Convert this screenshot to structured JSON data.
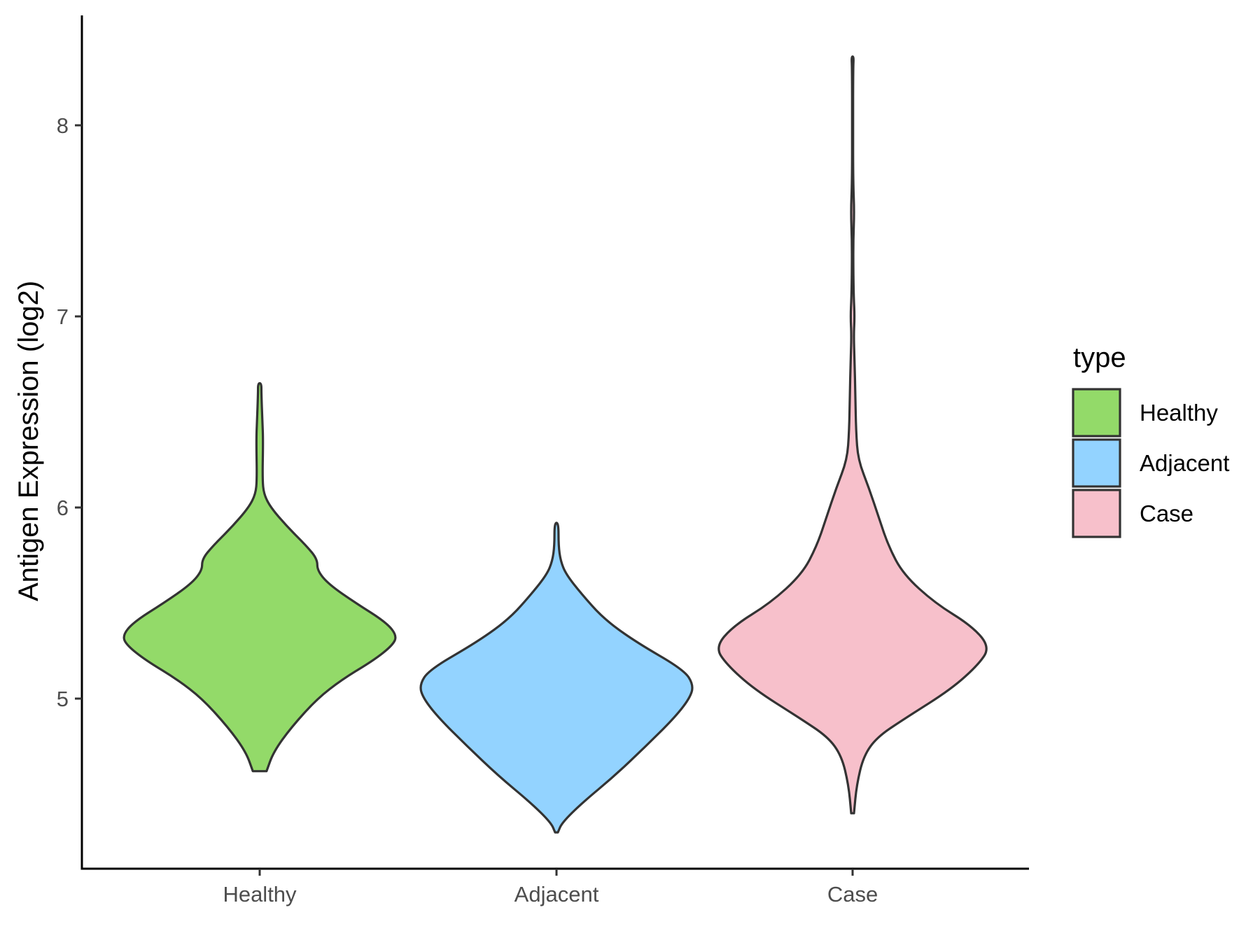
{
  "chart_data": {
    "type": "violin",
    "title": "",
    "xlabel": "",
    "ylabel": "Antigen Expression (log2)",
    "ylim": [
      4.2,
      8.6
    ],
    "yticks": [
      5,
      6,
      7,
      8
    ],
    "categories": [
      "Healthy",
      "Adjacent",
      "Case"
    ],
    "legend": {
      "title": "type",
      "position": "right",
      "entries": [
        "Healthy",
        "Adjacent",
        "Case"
      ]
    },
    "grid": false,
    "series": [
      {
        "name": "Healthy",
        "color": "#93DA69",
        "min": 4.62,
        "max": 6.65,
        "profile": [
          [
            4.62,
            0.05
          ],
          [
            4.72,
            0.1
          ],
          [
            4.85,
            0.23
          ],
          [
            5.0,
            0.42
          ],
          [
            5.1,
            0.6
          ],
          [
            5.2,
            0.83
          ],
          [
            5.28,
            0.97
          ],
          [
            5.33,
            1.0
          ],
          [
            5.4,
            0.92
          ],
          [
            5.5,
            0.7
          ],
          [
            5.6,
            0.5
          ],
          [
            5.67,
            0.42
          ],
          [
            5.73,
            0.42
          ],
          [
            5.8,
            0.34
          ],
          [
            5.9,
            0.2
          ],
          [
            6.0,
            0.08
          ],
          [
            6.07,
            0.03
          ],
          [
            6.15,
            0.02
          ],
          [
            6.35,
            0.025
          ],
          [
            6.45,
            0.02
          ],
          [
            6.6,
            0.012
          ],
          [
            6.65,
            0.012
          ]
        ]
      },
      {
        "name": "Adjacent",
        "color": "#93D3FF",
        "min": 4.3,
        "max": 5.92,
        "profile": [
          [
            4.3,
            0.01
          ],
          [
            4.35,
            0.04
          ],
          [
            4.45,
            0.18
          ],
          [
            4.6,
            0.43
          ],
          [
            4.75,
            0.65
          ],
          [
            4.9,
            0.86
          ],
          [
            5.0,
            0.97
          ],
          [
            5.07,
            1.0
          ],
          [
            5.15,
            0.93
          ],
          [
            5.3,
            0.57
          ],
          [
            5.42,
            0.34
          ],
          [
            5.55,
            0.18
          ],
          [
            5.65,
            0.07
          ],
          [
            5.72,
            0.03
          ],
          [
            5.8,
            0.015
          ],
          [
            5.92,
            0.015
          ]
        ]
      },
      {
        "name": "Case",
        "color": "#F7C0CB",
        "min": 4.4,
        "max": 8.36,
        "profile": [
          [
            4.4,
            0.01
          ],
          [
            4.55,
            0.03
          ],
          [
            4.7,
            0.08
          ],
          [
            4.8,
            0.18
          ],
          [
            4.9,
            0.39
          ],
          [
            5.05,
            0.72
          ],
          [
            5.18,
            0.92
          ],
          [
            5.27,
            1.0
          ],
          [
            5.38,
            0.87
          ],
          [
            5.5,
            0.6
          ],
          [
            5.65,
            0.37
          ],
          [
            5.8,
            0.26
          ],
          [
            5.95,
            0.19
          ],
          [
            6.1,
            0.12
          ],
          [
            6.25,
            0.04
          ],
          [
            6.4,
            0.025
          ],
          [
            6.6,
            0.02
          ],
          [
            6.75,
            0.015
          ],
          [
            6.9,
            0.008
          ],
          [
            7.0,
            0.015
          ],
          [
            7.1,
            0.008
          ],
          [
            7.25,
            0.005
          ],
          [
            7.4,
            0.005
          ],
          [
            7.55,
            0.012
          ],
          [
            7.7,
            0.004
          ],
          [
            8.0,
            0.003
          ],
          [
            8.3,
            0.004
          ],
          [
            8.36,
            0.008
          ]
        ]
      }
    ]
  }
}
